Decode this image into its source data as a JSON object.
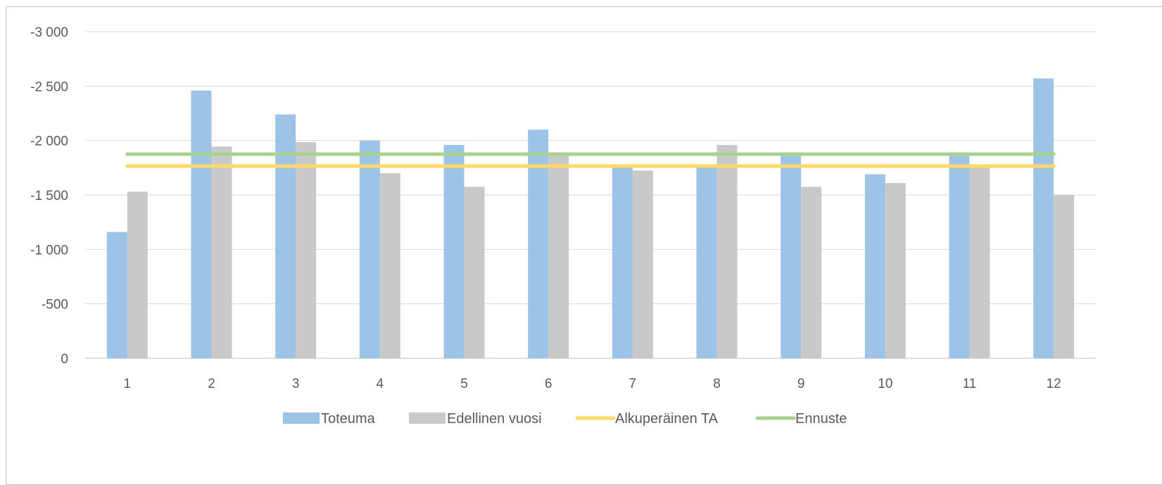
{
  "chart_data": {
    "type": "bar",
    "title": "",
    "xlabel": "",
    "ylabel": "",
    "categories": [
      "1",
      "2",
      "3",
      "4",
      "5",
      "6",
      "7",
      "8",
      "9",
      "10",
      "11",
      "12"
    ],
    "y_ticks": [
      "-3 000",
      "-2 500",
      "-2 000",
      "-1 500",
      "-1 000",
      "-500",
      "0"
    ],
    "y_tick_values": [
      -3000,
      -2500,
      -2000,
      -1500,
      -1000,
      -500,
      0
    ],
    "ylim": [
      0,
      -3000
    ],
    "y_axis_inverted": true,
    "grid": true,
    "legend_position": "bottom",
    "series": [
      {
        "name": "Toteuma",
        "type": "bar",
        "color": "#9dc3e6",
        "values": [
          -1160,
          -2460,
          -2240,
          -2000,
          -1960,
          -2100,
          -1750,
          -1760,
          -1860,
          -1690,
          -1860,
          -2570
        ]
      },
      {
        "name": "Edellinen vuosi",
        "type": "bar",
        "color": "#c9c9c9",
        "values": [
          -1530,
          -1945,
          -1985,
          -1700,
          -1575,
          -1870,
          -1725,
          -1960,
          -1575,
          -1610,
          -1760,
          -1500
        ]
      },
      {
        "name": "Alkuperäinen TA",
        "type": "line",
        "color": "#ffd966",
        "values": [
          -1765,
          -1765,
          -1765,
          -1765,
          -1765,
          -1765,
          -1765,
          -1765,
          -1765,
          -1765,
          -1765,
          -1765
        ]
      },
      {
        "name": "Ennuste",
        "type": "line",
        "color": "#a9d18e",
        "values": [
          -1875,
          -1875,
          -1875,
          -1875,
          -1875,
          -1875,
          -1875,
          -1875,
          -1875,
          -1875,
          -1875,
          -1875
        ]
      }
    ]
  }
}
